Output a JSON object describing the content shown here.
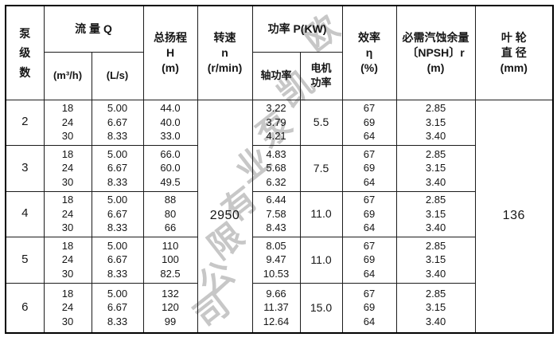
{
  "watermark": {
    "text": "欧凯泵业有限公司",
    "color": "#c7c7c7"
  },
  "table": {
    "header": {
      "stage": [
        "泵",
        "级",
        "数"
      ],
      "flow_label": "流  量  Q",
      "flow_sub": [
        "(m³/h)",
        "(L/s)"
      ],
      "head": [
        "总扬程",
        "H",
        "(m)"
      ],
      "speed": [
        "转速",
        "n",
        "(r/min)"
      ],
      "power_label": "功率 P(KW)",
      "power_sub": [
        [
          "轴功率"
        ],
        [
          "电机",
          "功率"
        ]
      ],
      "efficiency": [
        "效率",
        "η",
        "(%)"
      ],
      "npsh": [
        "必需汽蚀余量",
        "〔NPSH〕r",
        "(m)"
      ],
      "impeller": [
        "叶  轮",
        "直  径",
        "(mm)"
      ]
    },
    "speed_value": "2950",
    "impeller_value": "136",
    "rows": [
      {
        "stage": "2",
        "flow_m3h": [
          "18",
          "24",
          "30"
        ],
        "flow_ls": [
          "5.00",
          "6.67",
          "8.33"
        ],
        "head": [
          "44.0",
          "40.0",
          "33.0"
        ],
        "shaft_power": [
          "3.22",
          "3.79",
          "4.21"
        ],
        "motor_power": "5.5",
        "efficiency": [
          "67",
          "69",
          "64"
        ],
        "npsh": [
          "2.85",
          "3.15",
          "3.40"
        ]
      },
      {
        "stage": "3",
        "flow_m3h": [
          "18",
          "24",
          "30"
        ],
        "flow_ls": [
          "5.00",
          "6.67",
          "8.33"
        ],
        "head": [
          "66.0",
          "60.0",
          "49.5"
        ],
        "shaft_power": [
          "4.83",
          "5.68",
          "6.32"
        ],
        "motor_power": "7.5",
        "efficiency": [
          "67",
          "69",
          "64"
        ],
        "npsh": [
          "2.85",
          "3.15",
          "3.40"
        ]
      },
      {
        "stage": "4",
        "flow_m3h": [
          "18",
          "24",
          "30"
        ],
        "flow_ls": [
          "5.00",
          "6.67",
          "8.33"
        ],
        "head": [
          "88",
          "80",
          "66"
        ],
        "shaft_power": [
          "6.44",
          "7.58",
          "8.43"
        ],
        "motor_power": "11.0",
        "efficiency": [
          "67",
          "69",
          "64"
        ],
        "npsh": [
          "2.85",
          "3.15",
          "3.40"
        ]
      },
      {
        "stage": "5",
        "flow_m3h": [
          "18",
          "24",
          "30"
        ],
        "flow_ls": [
          "5.00",
          "6.67",
          "8.33"
        ],
        "head": [
          "110",
          "100",
          "82.5"
        ],
        "shaft_power": [
          "8.05",
          "9.47",
          "10.53"
        ],
        "motor_power": "11.0",
        "efficiency": [
          "67",
          "69",
          "64"
        ],
        "npsh": [
          "2.85",
          "3.15",
          "3.40"
        ]
      },
      {
        "stage": "6",
        "flow_m3h": [
          "18",
          "24",
          "30"
        ],
        "flow_ls": [
          "5.00",
          "6.67",
          "8.33"
        ],
        "head": [
          "132",
          "120",
          "99"
        ],
        "shaft_power": [
          "9.66",
          "11.37",
          "12.64"
        ],
        "motor_power": "15.0",
        "efficiency": [
          "67",
          "69",
          "64"
        ],
        "npsh": [
          "2.85",
          "3.15",
          "3.40"
        ]
      }
    ]
  }
}
